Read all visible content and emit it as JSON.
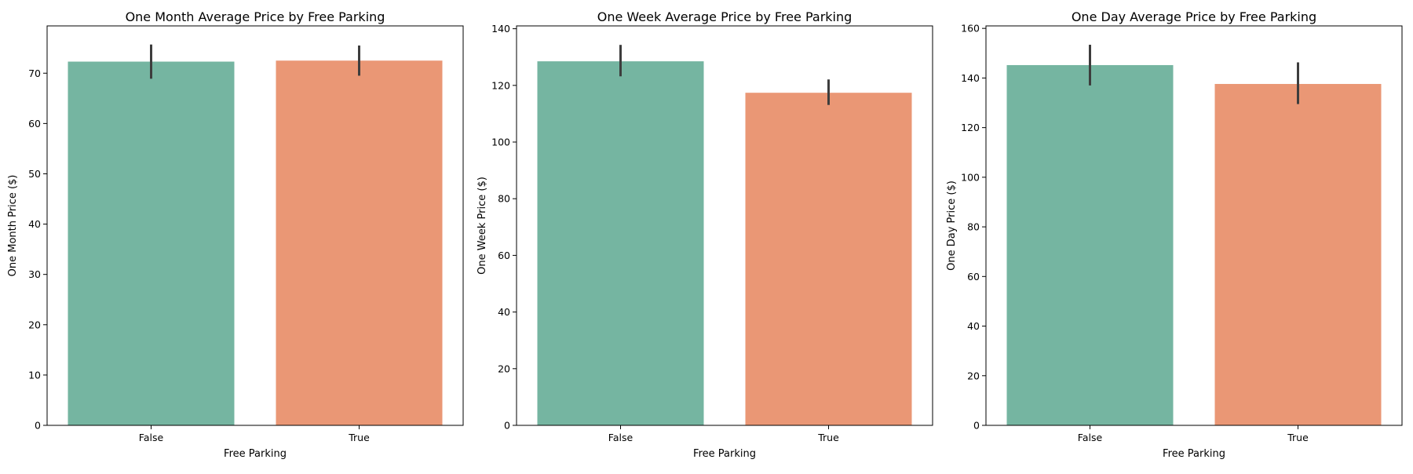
{
  "chart_data": [
    {
      "type": "bar",
      "title": "One Month Average Price by Free Parking",
      "xlabel": "Free Parking",
      "ylabel": "One Month Price ($)",
      "categories": [
        "False",
        "True"
      ],
      "values": [
        72.3,
        72.5
      ],
      "error_low": [
        68.9,
        69.5
      ],
      "error_high": [
        75.7,
        75.5
      ],
      "ylim": [
        0,
        79.4
      ],
      "yticks": [
        0,
        10,
        20,
        30,
        40,
        50,
        60,
        70
      ],
      "colors": [
        "#75b5a1",
        "#ea9775"
      ],
      "grid": false
    },
    {
      "type": "bar",
      "title": "One Week Average Price by Free Parking",
      "xlabel": "Free Parking",
      "ylabel": "One Week Price ($)",
      "categories": [
        "False",
        "True"
      ],
      "values": [
        128.5,
        117.4
      ],
      "error_low": [
        123.2,
        113.1
      ],
      "error_high": [
        134.3,
        122.1
      ],
      "ylim": [
        0,
        141
      ],
      "yticks": [
        0,
        20,
        40,
        60,
        80,
        100,
        120,
        140
      ],
      "colors": [
        "#75b5a1",
        "#ea9775"
      ],
      "grid": false
    },
    {
      "type": "bar",
      "title": "One Day Average Price by Free Parking",
      "xlabel": "Free Parking",
      "ylabel": "One Day Price ($)",
      "categories": [
        "False",
        "True"
      ],
      "values": [
        145.2,
        137.6
      ],
      "error_low": [
        137.0,
        129.5
      ],
      "error_high": [
        153.4,
        146.3
      ],
      "ylim": [
        0,
        161
      ],
      "yticks": [
        0,
        20,
        40,
        60,
        80,
        100,
        120,
        140,
        160
      ],
      "colors": [
        "#75b5a1",
        "#ea9775"
      ],
      "grid": false
    }
  ]
}
